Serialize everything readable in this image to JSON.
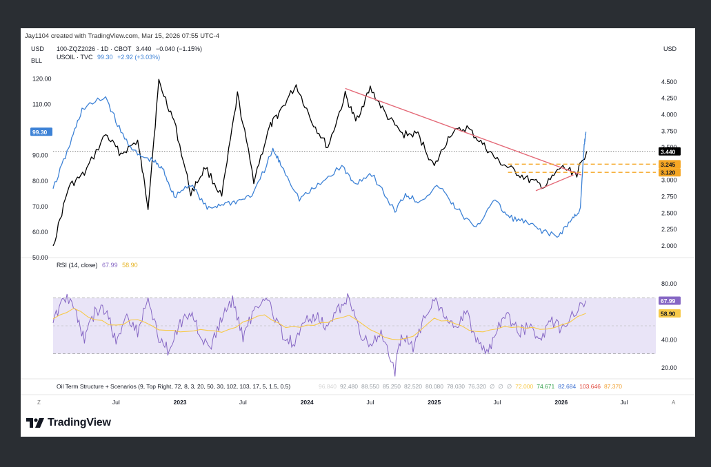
{
  "header": {
    "credit": "Jay1104 created with TradingView.com, Mar 15, 2026 07:55 UTC-4"
  },
  "brand": {
    "name": "TradingView"
  },
  "legend": {
    "left_unit": "USD",
    "left_unit_sub": "BLL",
    "right_unit": "USD",
    "primary": {
      "name": "100-ZQZ2026 · 1D · CBOT",
      "value": "3.440",
      "change": "−0.040 (−1.15%)"
    },
    "secondary": {
      "name": "USOIL · TVC",
      "value": "99.30",
      "change": "+2.92 (+3.03%)"
    }
  },
  "rsi_legend": {
    "name": "RSI (14, close)",
    "rsi": "67.99",
    "ma": "58.90"
  },
  "indicator_line": {
    "name": "Oil Term Structure + Scenarios (9, Top Right, 72, 8, 3, 20, 50, 30, 102, 103, 17, 5, 1.5, 0.5)",
    "values": [
      {
        "text": "96.840",
        "color": "#d6d6d6"
      },
      {
        "text": "92.480",
        "color": "#9aa0a6"
      },
      {
        "text": "88.550",
        "color": "#9aa0a6"
      },
      {
        "text": "85.250",
        "color": "#9aa0a6"
      },
      {
        "text": "82.520",
        "color": "#9aa0a6"
      },
      {
        "text": "80.080",
        "color": "#9aa0a6"
      },
      {
        "text": "78.030",
        "color": "#9aa0a6"
      },
      {
        "text": "76.320",
        "color": "#9aa0a6"
      },
      {
        "text": "∅",
        "color": "#9aa0a6"
      },
      {
        "text": "∅",
        "color": "#9aa0a6"
      },
      {
        "text": "∅",
        "color": "#9aa0a6"
      },
      {
        "text": "72.000",
        "color": "#f7c948"
      },
      {
        "text": "74.671",
        "color": "#2e9e47"
      },
      {
        "text": "82.684",
        "color": "#3b6fd1"
      },
      {
        "text": "103.646",
        "color": "#e0463a"
      },
      {
        "text": "87.370",
        "color": "#f0a030"
      }
    ]
  },
  "colors": {
    "primary": "#000000",
    "secondary": "#3d82d6",
    "trendline": "#e46a78",
    "level": "#f5a623",
    "rsi": "#8667c4",
    "rsi_ma": "#f7c948",
    "rsi_band": "#e9e4f7"
  },
  "chart_data": [
    {
      "type": "line",
      "panel": "main",
      "x_axis": {
        "type": "date",
        "range": [
          "2022-01-01",
          "2026-09-30"
        ],
        "ticks": [
          {
            "date": "2022-07-01",
            "label": "Jul",
            "bold": false
          },
          {
            "date": "2023-01-01",
            "label": "2023",
            "bold": true
          },
          {
            "date": "2023-07-01",
            "label": "Jul",
            "bold": false
          },
          {
            "date": "2024-01-01",
            "label": "2024",
            "bold": true
          },
          {
            "date": "2024-07-01",
            "label": "Jul",
            "bold": false
          },
          {
            "date": "2025-01-01",
            "label": "2025",
            "bold": true
          },
          {
            "date": "2025-07-01",
            "label": "Jul",
            "bold": false
          },
          {
            "date": "2026-01-01",
            "label": "2026",
            "bold": true
          },
          {
            "date": "2026-07-01",
            "label": "Jul",
            "bold": false
          }
        ]
      },
      "left_axis": {
        "range": [
          50,
          125
        ],
        "ticks": [
          "120.00",
          "110.00",
          "90.00",
          "80.00",
          "70.00",
          "60.00",
          "50.00"
        ],
        "tick_values": [
          120,
          110,
          90,
          80,
          70,
          60,
          50
        ]
      },
      "right_axis": {
        "range": [
          1.82,
          4.74
        ],
        "ticks": [
          "4.500",
          "4.250",
          "4.000",
          "3.750",
          "3.500",
          "3.000",
          "2.750",
          "2.500",
          "2.250",
          "2.000"
        ],
        "tick_values": [
          4.5,
          4.25,
          4.0,
          3.75,
          3.5,
          3.0,
          2.75,
          2.5,
          2.25,
          2.0
        ]
      },
      "series": [
        {
          "name": "100-ZQZ2026 · 1D · CBOT",
          "axis": "right",
          "color": "#000000",
          "x": [
            "2022-01-01",
            "2022-02-15",
            "2022-04-01",
            "2022-06-01",
            "2022-07-15",
            "2022-09-01",
            "2022-10-01",
            "2022-11-01",
            "2022-12-15",
            "2023-02-01",
            "2023-03-15",
            "2023-05-01",
            "2023-06-15",
            "2023-08-01",
            "2023-09-15",
            "2023-10-15",
            "2023-12-01",
            "2024-01-15",
            "2024-03-01",
            "2024-04-20",
            "2024-05-20",
            "2024-07-01",
            "2024-08-15",
            "2024-10-01",
            "2024-11-15",
            "2025-01-01",
            "2025-02-15",
            "2025-04-05",
            "2025-05-20",
            "2025-07-01",
            "2025-08-15",
            "2025-10-01",
            "2025-11-15",
            "2026-01-01",
            "2026-02-15",
            "2026-03-15"
          ],
          "values": [
            2.0,
            2.9,
            3.1,
            3.7,
            3.4,
            3.6,
            2.6,
            4.5,
            3.9,
            2.8,
            3.2,
            2.75,
            4.3,
            3.0,
            3.8,
            4.05,
            4.45,
            3.9,
            3.5,
            4.3,
            3.9,
            4.4,
            4.0,
            3.7,
            3.7,
            3.2,
            3.7,
            3.8,
            3.55,
            3.3,
            3.15,
            3.0,
            2.9,
            3.2,
            3.1,
            3.44
          ]
        },
        {
          "name": "USOIL · TVC",
          "axis": "left",
          "color": "#3d82d6",
          "x": [
            "2022-01-01",
            "2022-02-15",
            "2022-03-25",
            "2022-06-01",
            "2022-07-15",
            "2022-09-01",
            "2022-10-15",
            "2022-11-15",
            "2022-12-15",
            "2023-02-01",
            "2023-03-20",
            "2023-05-01",
            "2023-06-15",
            "2023-08-01",
            "2023-09-25",
            "2023-10-20",
            "2023-12-10",
            "2024-02-01",
            "2024-04-10",
            "2024-05-15",
            "2024-07-05",
            "2024-09-10",
            "2024-10-10",
            "2024-11-15",
            "2025-01-15",
            "2025-03-01",
            "2025-05-01",
            "2025-06-20",
            "2025-08-01",
            "2025-09-15",
            "2025-11-01",
            "2025-12-20",
            "2026-02-01",
            "2026-02-25",
            "2026-03-08",
            "2026-03-13"
          ],
          "values": [
            77,
            93,
            108,
            113,
            99,
            90,
            88,
            84,
            74,
            79,
            69,
            71,
            72,
            75,
            92,
            86,
            73,
            78,
            86,
            79,
            83,
            68,
            75,
            72,
            78,
            70,
            61,
            73,
            66,
            64,
            61,
            58,
            65,
            69,
            94,
            99.3
          ]
        }
      ],
      "trendlines": [
        {
          "from": {
            "x": "2024-04-20",
            "y": 4.4
          },
          "to": {
            "x": "2026-02-28",
            "y": 3.08
          }
        },
        {
          "from": {
            "x": "2025-10-20",
            "y": 2.84
          },
          "to": {
            "x": "2026-02-05",
            "y": 3.08
          }
        }
      ],
      "levels": [
        {
          "y": 3.245,
          "label": "3.245",
          "from": "2025-08-01"
        },
        {
          "y": 3.12,
          "label": "3.120",
          "from": "2025-08-01"
        }
      ],
      "reference_line": {
        "y": 3.44
      },
      "last_labels": [
        {
          "axis": "right",
          "y": 3.44,
          "label": "3.440",
          "style": "dark"
        },
        {
          "axis": "left",
          "y": 99.3,
          "label": "99.30",
          "style": "blue"
        }
      ]
    },
    {
      "type": "line",
      "panel": "rsi",
      "y_axis": {
        "range": [
          12,
          88
        ],
        "ticks": [
          "80.00",
          "40.00",
          "20.00"
        ],
        "tick_values": [
          80,
          40,
          20
        ]
      },
      "bands": {
        "upper": 70,
        "middle": 50,
        "lower": 30
      },
      "series": [
        {
          "name": "RSI",
          "color": "#8667c4",
          "x": [
            "2022-01-01",
            "2022-02-01",
            "2022-03-05",
            "2022-04-01",
            "2022-05-01",
            "2022-06-01",
            "2022-07-01",
            "2022-08-01",
            "2022-09-01",
            "2022-10-01",
            "2022-11-01",
            "2022-12-01",
            "2023-01-01",
            "2023-02-01",
            "2023-03-01",
            "2023-04-01",
            "2023-05-01",
            "2023-06-01",
            "2023-07-01",
            "2023-08-01",
            "2023-09-01",
            "2023-10-01",
            "2023-11-01",
            "2023-12-01",
            "2024-01-01",
            "2024-02-01",
            "2024-03-01",
            "2024-04-01",
            "2024-05-01",
            "2024-06-01",
            "2024-07-01",
            "2024-08-01",
            "2024-09-10",
            "2024-10-01",
            "2024-11-01",
            "2024-12-01",
            "2025-01-01",
            "2025-02-01",
            "2025-03-01",
            "2025-04-01",
            "2025-05-01",
            "2025-06-01",
            "2025-07-01",
            "2025-08-01",
            "2025-09-01",
            "2025-10-01",
            "2025-11-01",
            "2025-12-01",
            "2026-01-01",
            "2026-02-01",
            "2026-03-13"
          ],
          "values": [
            52,
            72,
            62,
            40,
            60,
            62,
            38,
            58,
            45,
            70,
            40,
            32,
            52,
            60,
            42,
            35,
            55,
            68,
            42,
            60,
            72,
            55,
            40,
            38,
            55,
            58,
            48,
            62,
            70,
            45,
            36,
            43,
            18,
            45,
            34,
            55,
            70,
            58,
            48,
            60,
            42,
            30,
            48,
            56,
            45,
            50,
            38,
            55,
            48,
            57,
            67.99
          ]
        },
        {
          "name": "RSI-based MA",
          "color": "#f7c948",
          "x": [
            "2022-01-01",
            "2022-03-01",
            "2022-05-01",
            "2022-07-01",
            "2022-09-01",
            "2022-11-01",
            "2023-01-01",
            "2023-03-01",
            "2023-05-01",
            "2023-07-01",
            "2023-09-01",
            "2023-11-01",
            "2024-01-01",
            "2024-03-01",
            "2024-05-01",
            "2024-07-01",
            "2024-09-01",
            "2024-11-01",
            "2025-01-01",
            "2025-03-01",
            "2025-05-01",
            "2025-07-01",
            "2025-09-01",
            "2025-11-01",
            "2026-01-01",
            "2026-03-13"
          ],
          "values": [
            55,
            62,
            55,
            50,
            55,
            48,
            45,
            48,
            45,
            52,
            58,
            48,
            50,
            52,
            58,
            48,
            40,
            42,
            55,
            52,
            45,
            48,
            50,
            47,
            50,
            58.9
          ]
        }
      ],
      "last_labels": [
        {
          "y": 67.99,
          "label": "67.99",
          "style": "purple"
        },
        {
          "y": 58.9,
          "label": "58.90",
          "style": "yellow"
        }
      ]
    }
  ],
  "time_axis": {
    "left_button": "Z",
    "right_button": "A"
  }
}
